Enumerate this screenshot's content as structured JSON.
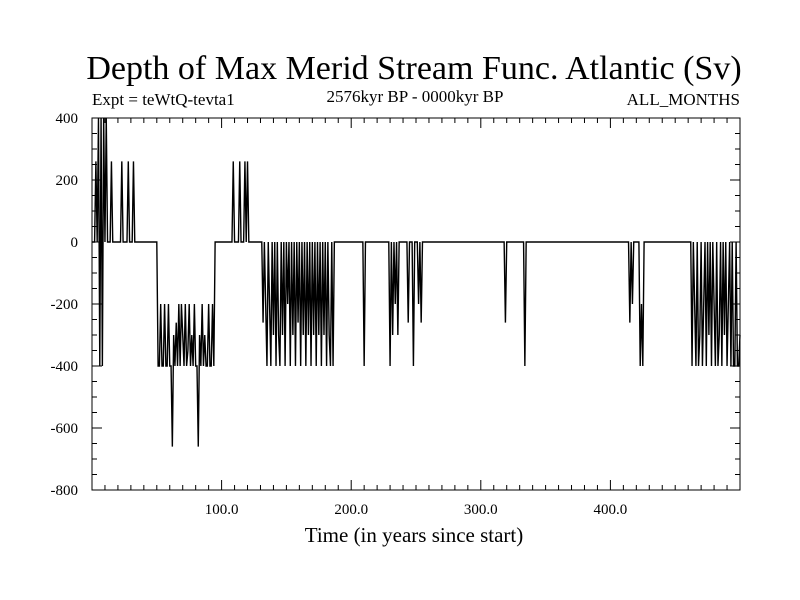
{
  "chart_data": {
    "type": "line",
    "title": "Depth of Max Merid Stream Func. Atlantic (Sv)",
    "subtitle_left": "Expt = teWtQ-tevta1",
    "subtitle_center": "2576kyr BP - 0000kyr BP",
    "subtitle_right": "ALL_MONTHS",
    "xlabel": "Time (in years since start)",
    "ylabel": "",
    "xlim": [
      0,
      500
    ],
    "ylim": [
      -800,
      400
    ],
    "grid": false,
    "x_ticks": [
      100,
      200,
      300,
      400
    ],
    "x_tick_labels": [
      "100.0",
      "200.0",
      "300.0",
      "400.0"
    ],
    "y_ticks": [
      400,
      200,
      0,
      -200,
      -400,
      -600,
      -800
    ],
    "y_tick_labels": [
      "400",
      "200",
      "0",
      "-200",
      "-400",
      "-600",
      "-800"
    ],
    "series": [
      {
        "values": [
          [
            0,
            0
          ],
          [
            2,
            0
          ],
          [
            3,
            260
          ],
          [
            4,
            0
          ],
          [
            5,
            400
          ],
          [
            6,
            -400
          ],
          [
            7,
            400
          ],
          [
            8,
            -400
          ],
          [
            9,
            400
          ],
          [
            10,
            0
          ],
          [
            11,
            400
          ],
          [
            12,
            0
          ],
          [
            14,
            0
          ],
          [
            15,
            260
          ],
          [
            16,
            0
          ],
          [
            22,
            0
          ],
          [
            23,
            260
          ],
          [
            24,
            0
          ],
          [
            27,
            0
          ],
          [
            28,
            260
          ],
          [
            29,
            0
          ],
          [
            31,
            0
          ],
          [
            32,
            260
          ],
          [
            33,
            0
          ],
          [
            50,
            0
          ],
          [
            51,
            -400
          ],
          [
            52,
            -400
          ],
          [
            53,
            -200
          ],
          [
            54,
            -400
          ],
          [
            55,
            -400
          ],
          [
            56,
            -200
          ],
          [
            57,
            -400
          ],
          [
            58,
            -400
          ],
          [
            59,
            -200
          ],
          [
            60,
            -400
          ],
          [
            61,
            -400
          ],
          [
            62,
            -660
          ],
          [
            63,
            -300
          ],
          [
            64,
            -400
          ],
          [
            65,
            -260
          ],
          [
            66,
            -400
          ],
          [
            67,
            -200
          ],
          [
            68,
            -400
          ],
          [
            69,
            -200
          ],
          [
            70,
            -300
          ],
          [
            71,
            -400
          ],
          [
            72,
            -200
          ],
          [
            73,
            -400
          ],
          [
            74,
            -350
          ],
          [
            75,
            -200
          ],
          [
            76,
            -400
          ],
          [
            77,
            -300
          ],
          [
            78,
            -400
          ],
          [
            79,
            -200
          ],
          [
            80,
            -400
          ],
          [
            81,
            -400
          ],
          [
            82,
            -660
          ],
          [
            83,
            -300
          ],
          [
            84,
            -400
          ],
          [
            85,
            -200
          ],
          [
            86,
            -400
          ],
          [
            87,
            -300
          ],
          [
            88,
            -400
          ],
          [
            89,
            -400
          ],
          [
            90,
            -200
          ],
          [
            91,
            -400
          ],
          [
            92,
            -400
          ],
          [
            93,
            -200
          ],
          [
            94,
            -400
          ],
          [
            95,
            0
          ],
          [
            108,
            0
          ],
          [
            109,
            260
          ],
          [
            110,
            0
          ],
          [
            113,
            0
          ],
          [
            114,
            260
          ],
          [
            115,
            0
          ],
          [
            117,
            0
          ],
          [
            118,
            260
          ],
          [
            119,
            0
          ],
          [
            120,
            260
          ],
          [
            121,
            0
          ],
          [
            131,
            0
          ],
          [
            132,
            -260
          ],
          [
            133,
            0
          ],
          [
            134,
            -200
          ],
          [
            135,
            -400
          ],
          [
            136,
            0
          ],
          [
            137,
            -200
          ],
          [
            138,
            -400
          ],
          [
            139,
            0
          ],
          [
            140,
            -300
          ],
          [
            141,
            0
          ],
          [
            142,
            -400
          ],
          [
            143,
            0
          ],
          [
            144,
            -300
          ],
          [
            145,
            -400
          ],
          [
            146,
            0
          ],
          [
            147,
            -300
          ],
          [
            148,
            0
          ],
          [
            149,
            -400
          ],
          [
            150,
            0
          ],
          [
            151,
            -200
          ],
          [
            152,
            0
          ],
          [
            153,
            -400
          ],
          [
            154,
            0
          ],
          [
            155,
            -300
          ],
          [
            156,
            0
          ],
          [
            157,
            -400
          ],
          [
            158,
            0
          ],
          [
            159,
            -260
          ],
          [
            160,
            0
          ],
          [
            161,
            -400
          ],
          [
            162,
            0
          ],
          [
            163,
            -300
          ],
          [
            164,
            0
          ],
          [
            165,
            -400
          ],
          [
            166,
            0
          ],
          [
            167,
            -300
          ],
          [
            168,
            0
          ],
          [
            169,
            -400
          ],
          [
            170,
            0
          ],
          [
            171,
            -300
          ],
          [
            172,
            0
          ],
          [
            173,
            -400
          ],
          [
            174,
            0
          ],
          [
            175,
            -300
          ],
          [
            176,
            0
          ],
          [
            177,
            -400
          ],
          [
            178,
            0
          ],
          [
            179,
            -300
          ],
          [
            180,
            0
          ],
          [
            181,
            -400
          ],
          [
            182,
            0
          ],
          [
            183,
            -300
          ],
          [
            184,
            -400
          ],
          [
            185,
            0
          ],
          [
            186,
            -400
          ],
          [
            187,
            0
          ],
          [
            209,
            0
          ],
          [
            210,
            -400
          ],
          [
            211,
            0
          ],
          [
            229,
            0
          ],
          [
            230,
            -400
          ],
          [
            231,
            0
          ],
          [
            232,
            -300
          ],
          [
            233,
            0
          ],
          [
            234,
            -200
          ],
          [
            235,
            0
          ],
          [
            236,
            -300
          ],
          [
            237,
            0
          ],
          [
            243,
            0
          ],
          [
            244,
            -260
          ],
          [
            245,
            0
          ],
          [
            247,
            0
          ],
          [
            248,
            -400
          ],
          [
            249,
            0
          ],
          [
            251,
            0
          ],
          [
            252,
            -200
          ],
          [
            253,
            0
          ],
          [
            254,
            -260
          ],
          [
            255,
            0
          ],
          [
            318,
            0
          ],
          [
            319,
            -260
          ],
          [
            320,
            0
          ],
          [
            333,
            0
          ],
          [
            334,
            -400
          ],
          [
            335,
            0
          ],
          [
            414,
            0
          ],
          [
            415,
            -260
          ],
          [
            416,
            0
          ],
          [
            417,
            -200
          ],
          [
            418,
            0
          ],
          [
            422,
            0
          ],
          [
            423,
            -400
          ],
          [
            424,
            -200
          ],
          [
            425,
            -400
          ],
          [
            426,
            0
          ],
          [
            462,
            0
          ],
          [
            463,
            -400
          ],
          [
            464,
            0
          ],
          [
            465,
            -200
          ],
          [
            466,
            -400
          ],
          [
            467,
            0
          ],
          [
            468,
            -400
          ],
          [
            469,
            -300
          ],
          [
            470,
            0
          ],
          [
            471,
            -400
          ],
          [
            472,
            -200
          ],
          [
            473,
            0
          ],
          [
            474,
            -400
          ],
          [
            475,
            0
          ],
          [
            476,
            -300
          ],
          [
            477,
            0
          ],
          [
            478,
            -400
          ],
          [
            479,
            0
          ],
          [
            480,
            -200
          ],
          [
            481,
            -400
          ],
          [
            482,
            0
          ],
          [
            483,
            -400
          ],
          [
            484,
            -300
          ],
          [
            485,
            0
          ],
          [
            486,
            -400
          ],
          [
            487,
            0
          ],
          [
            488,
            -300
          ],
          [
            489,
            0
          ],
          [
            490,
            -400
          ],
          [
            491,
            -200
          ],
          [
            492,
            0
          ],
          [
            493,
            -400
          ],
          [
            494,
            0
          ],
          [
            495,
            -400
          ],
          [
            496,
            -400
          ],
          [
            497,
            0
          ],
          [
            498,
            -400
          ],
          [
            499,
            -400
          ],
          [
            500,
            -300
          ]
        ]
      }
    ]
  }
}
